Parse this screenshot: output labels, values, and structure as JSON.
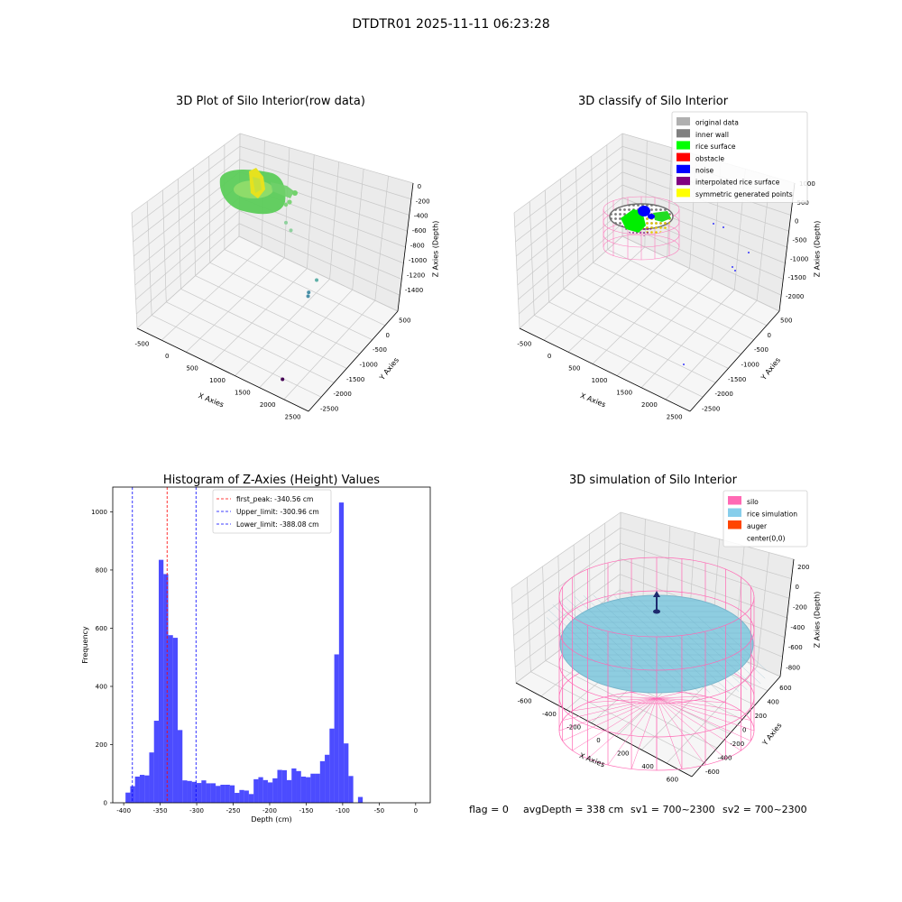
{
  "suptitle": "DTDTR01 2025-11-11 06:23:28",
  "footer": {
    "flag": "flag = 0",
    "avg_depth": "avgDepth = 338 cm",
    "sv1": "sv1 = 700~2300",
    "sv2": "sv2 = 700~2300"
  },
  "chart_data": [
    {
      "id": "raw",
      "type": "scatter3d",
      "title": "3D Plot of Silo Interior(row data)",
      "xlabel": "X Axies",
      "ylabel": "Y Axies",
      "zlabel": "Z Axies (Depth)",
      "x_ticks": [
        "-500",
        "0",
        "500",
        "1000",
        "1500",
        "2000",
        "2500"
      ],
      "y_ticks": [
        "-2500",
        "-2000",
        "-1500",
        "-1000",
        "-500",
        "0",
        "500"
      ],
      "z_ticks": [
        "0",
        "-200",
        "-400",
        "-600",
        "-800",
        "-1000",
        "-1200",
        "-1400"
      ],
      "xlim": [
        -650,
        2550
      ],
      "ylim": [
        -2700,
        700
      ],
      "zlim": [
        -1500,
        50
      ],
      "outliers": [
        {
          "x": 900,
          "y": -300,
          "z": -340,
          "color": "#8fd19e"
        },
        {
          "x": 1000,
          "y": -300,
          "z": -420,
          "color": "#8fd19e"
        },
        {
          "x": 1700,
          "y": -600,
          "z": -800,
          "color": "#5fb0a8"
        },
        {
          "x": 1600,
          "y": -700,
          "z": -980,
          "color": "#4a90a8"
        },
        {
          "x": 1600,
          "y": -720,
          "z": -1030,
          "color": "#4a90a8"
        },
        {
          "x": 2100,
          "y": -2400,
          "z": -1420,
          "color": "#440154"
        }
      ]
    },
    {
      "id": "classify",
      "type": "scatter3d",
      "title": "3D classify of Silo Interior",
      "xlabel": "X Axies",
      "ylabel": "Y Axies",
      "zlabel": "Z Axies (Depth)",
      "x_ticks": [
        "-500",
        "0",
        "500",
        "1000",
        "1500",
        "2000",
        "2500"
      ],
      "y_ticks": [
        "-2500",
        "-2000",
        "-1500",
        "-1000",
        "-500",
        "0",
        "500"
      ],
      "z_ticks": [
        "1000",
        "500",
        "0",
        "-500",
        "-1000",
        "-1500",
        "-2000"
      ],
      "legend_position": "top-right",
      "legend": [
        {
          "label": "original data",
          "color": "#b0b0b0"
        },
        {
          "label": "inner wall",
          "color": "#808080"
        },
        {
          "label": "rice surface",
          "color": "#00ff00"
        },
        {
          "label": "obstacle",
          "color": "#ff0000"
        },
        {
          "label": "noise",
          "color": "#0000ff"
        },
        {
          "label": "interpolated rice surface",
          "color": "#800080"
        },
        {
          "label": "symmetric generated points",
          "color": "#ffff00"
        }
      ]
    },
    {
      "id": "hist",
      "type": "bar",
      "title": "Histogram of Z-Axies (Height) Values",
      "xlabel": "Depth (cm)",
      "ylabel": "Frequency",
      "xlim": [
        -415,
        20
      ],
      "ylim": [
        0,
        1085
      ],
      "x_ticks": [
        -400,
        -350,
        -300,
        -250,
        -200,
        -150,
        -100,
        -50,
        0
      ],
      "y_ticks": [
        0,
        200,
        400,
        600,
        800,
        1000
      ],
      "bar_color": "#0000ff",
      "bin_start": -397.5,
      "bin_width": 6.5,
      "values": [
        35,
        57,
        90,
        96,
        94,
        173,
        282,
        835,
        786,
        576,
        567,
        250,
        77,
        75,
        72,
        68,
        77,
        67,
        67,
        58,
        62,
        62,
        60,
        34,
        44,
        42,
        30,
        81,
        88,
        78,
        70,
        84,
        113,
        112,
        78,
        118,
        109,
        90,
        88,
        100,
        100,
        143,
        165,
        255,
        510,
        1032,
        204,
        92,
        0,
        20
      ],
      "vlines": [
        {
          "x": -340.56,
          "color": "#ff0000"
        },
        {
          "x": -300.96,
          "color": "#0000ff"
        },
        {
          "x": -388.08,
          "color": "#0000ff"
        }
      ],
      "legend_position": "top-center",
      "legend": [
        {
          "label": "first_peak: -340.56 cm",
          "color": "#ff0000"
        },
        {
          "label": "Upper_limit: -300.96 cm",
          "color": "#0000ff"
        },
        {
          "label": "Lower_limit: -388.08 cm",
          "color": "#0000ff"
        }
      ]
    },
    {
      "id": "sim",
      "type": "surface3d",
      "title": "3D simulation of Silo Interior",
      "xlabel": "X Axies",
      "ylabel": "Y Axies",
      "zlabel": "Z Axies (Depth)",
      "x_ticks": [
        "-600",
        "-400",
        "-200",
        "0",
        "200",
        "400",
        "600"
      ],
      "y_ticks": [
        "-600",
        "-400",
        "-200",
        "0",
        "200",
        "400",
        "600"
      ],
      "z_ticks": [
        "200",
        "0",
        "-200",
        "-400",
        "-600",
        "-800"
      ],
      "legend_position": "top-right",
      "legend": [
        {
          "label": "silo",
          "color": "#ff69b4"
        },
        {
          "label": "rice simulation",
          "color": "#87ceeb"
        },
        {
          "label": "auger",
          "color": "#ff4500"
        },
        {
          "label": "center(0,0)",
          "color": "#ffffff"
        }
      ]
    }
  ]
}
